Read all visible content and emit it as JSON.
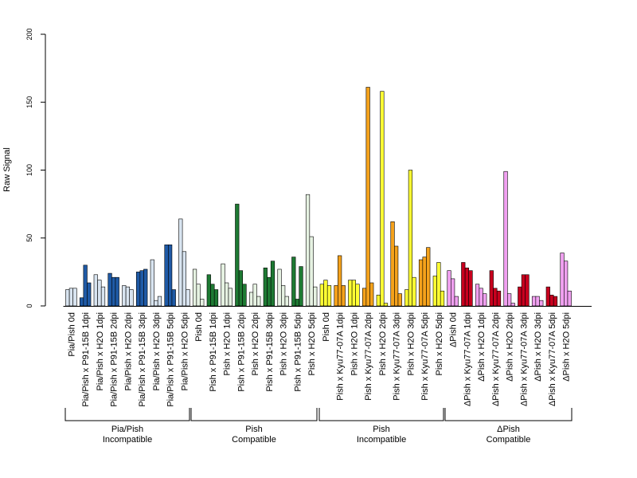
{
  "chart_data": {
    "type": "bar",
    "ylabel": "Raw Signal",
    "ylim": [
      0,
      200
    ],
    "yticks": [
      0,
      50,
      100,
      150,
      200
    ],
    "categories": [
      "Pia/Pish 0d",
      "Pia/Pish x P91-15B 1dpi",
      "Pia/Pish x H2O 1dpi",
      "Pia/Pish x P91-15B 2dpi",
      "Pia/Pish x H2O 2dpi",
      "Pia/Pish x P91-15B 3dpi",
      "Pia/Pish x H2O 3dpi",
      "Pia/Pish x P91-15B 5dpi",
      "Pia/Pish x H2O 5dpi",
      "Pish 0d",
      "Pish x P91-15B 1dpi",
      "Pish x H2O 1dpi",
      "Pish x P91-15B 2dpi",
      "Pish x H2O 2dpi",
      "Pish x P91-15B 3dpi",
      "Pish x H2O 3dpi",
      "Pish x P91-15B 5dpi",
      "Pish x H2O 5dpi",
      "Pish 0d",
      "Pish x Kyu77-07A 1dpi",
      "Pish x H2O 1dpi",
      "Pish x Kyu77-07A 2dpi",
      "Pish x H2O 2dpi",
      "Pish x Kyu77-07A 3dpi",
      "Pish x H2O 3dpi",
      "Pish x Kyu77-07A 5dpi",
      "Pish x H2O 5dpi",
      "ΔPish 0d",
      "ΔPish x Kyu77-07A 1dpi",
      "ΔPish x H2O 1dpi",
      "ΔPish x Kyu77-07A 2dpi",
      "ΔPish x H2O 2dpi",
      "ΔPish x Kyu77-07A 3dpi",
      "ΔPish x H2O 3dpi",
      "ΔPish x Kyu77-07A 5dpi",
      "ΔPish x H2O 5dpi"
    ],
    "values": [
      [
        12,
        13,
        13
      ],
      [
        6,
        30,
        17
      ],
      [
        23,
        19,
        14
      ],
      [
        24,
        21,
        21
      ],
      [
        15,
        14,
        12
      ],
      [
        25,
        26,
        27
      ],
      [
        34,
        4,
        7
      ],
      [
        45,
        45,
        12
      ],
      [
        64,
        40,
        12
      ],
      [
        27,
        16,
        5
      ],
      [
        23,
        16,
        12
      ],
      [
        31,
        17,
        13
      ],
      [
        75,
        26,
        16
      ],
      [
        10,
        16,
        7
      ],
      [
        28,
        21,
        33
      ],
      [
        27,
        15,
        7
      ],
      [
        36,
        5,
        29
      ],
      [
        82,
        51,
        14
      ],
      [
        16,
        19,
        15
      ],
      [
        15,
        37,
        15
      ],
      [
        19,
        19,
        16
      ],
      [
        13,
        161,
        17
      ],
      [
        8,
        158,
        2
      ],
      [
        62,
        44,
        9
      ],
      [
        12,
        100,
        21
      ],
      [
        34,
        36,
        43
      ],
      [
        22,
        32,
        11
      ],
      [
        26,
        20,
        7
      ],
      [
        32,
        28,
        26
      ],
      [
        16,
        13,
        9
      ],
      [
        26,
        13,
        11
      ],
      [
        99,
        9,
        2
      ],
      [
        14,
        23,
        23
      ],
      [
        7,
        7,
        4
      ],
      [
        14,
        8,
        7
      ],
      [
        39,
        33,
        11
      ]
    ],
    "bar_colors": [
      "#d8e4f0",
      "#1f5aa6",
      "#d8e4f0",
      "#1f5aa6",
      "#d8e4f0",
      "#1f5aa6",
      "#d8e4f0",
      "#1f5aa6",
      "#d8e4f0",
      "#e6f2e2",
      "#1e7a33",
      "#e6f2e2",
      "#1e7a33",
      "#e6f2e2",
      "#1e7a33",
      "#e6f2e2",
      "#1e7a33",
      "#e6f2e2",
      "#ffff33",
      "#f5a21b",
      "#ffff33",
      "#f5a21b",
      "#ffff33",
      "#f5a21b",
      "#ffff33",
      "#f5a21b",
      "#ffff33",
      "#f0a0f0",
      "#c8001e",
      "#f0a0f0",
      "#c8001e",
      "#f0a0f0",
      "#c8001e",
      "#f0a0f0",
      "#c8001e",
      "#f0a0f0"
    ],
    "groups": [
      {
        "line1": "Pia/Pish",
        "line2": "Incompatible",
        "start": 0,
        "end": 8
      },
      {
        "line1": "Pish",
        "line2": "Compatible",
        "start": 9,
        "end": 17
      },
      {
        "line1": "Pish",
        "line2": "Incompatible",
        "start": 18,
        "end": 26
      },
      {
        "line1": "ΔPish",
        "line2": "Compatible",
        "start": 27,
        "end": 35
      }
    ]
  }
}
